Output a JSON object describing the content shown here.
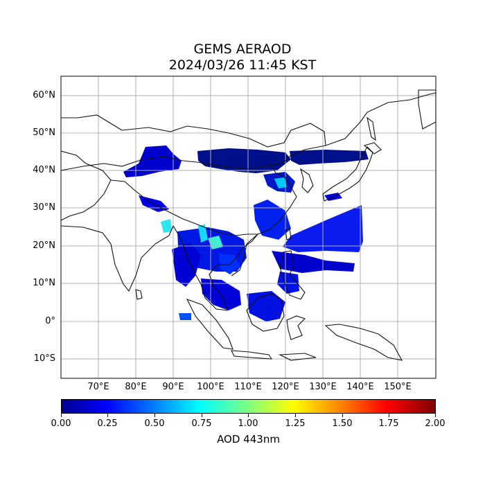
{
  "title": {
    "line1": "GEMS AERAOD",
    "line2": "2024/03/26 11:45 KST"
  },
  "map": {
    "lon_range": [
      60,
      160
    ],
    "lat_range": [
      -15,
      65
    ],
    "lat_ticks": [
      "60°N",
      "50°N",
      "40°N",
      "30°N",
      "20°N",
      "10°N",
      "0°",
      "10°S"
    ],
    "lon_ticks": [
      "70°E",
      "80°E",
      "90°E",
      "100°E",
      "110°E",
      "120°E",
      "130°E",
      "140°E",
      "150°E"
    ],
    "grid": true
  },
  "colorbar": {
    "colormap": "jet",
    "range": [
      0.0,
      2.0
    ],
    "ticks": [
      "0.00",
      "0.25",
      "0.50",
      "0.75",
      "1.00",
      "1.25",
      "1.50",
      "1.75",
      "2.00"
    ],
    "label": "AOD 443nm"
  }
}
